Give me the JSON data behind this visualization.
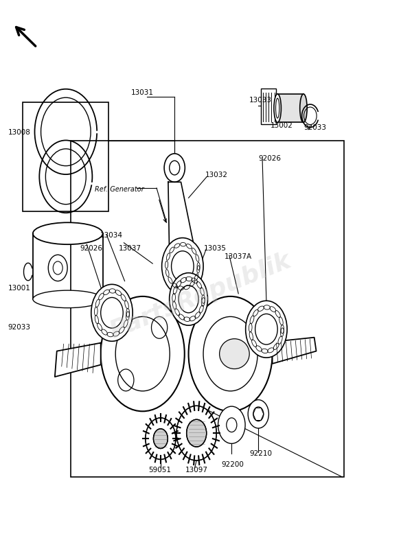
{
  "bg_color": "#ffffff",
  "line_color": "#000000",
  "watermark_color": "#c8c8c8",
  "watermark_text": "PartsRepublik",
  "watermark_alpha": 0.35
}
